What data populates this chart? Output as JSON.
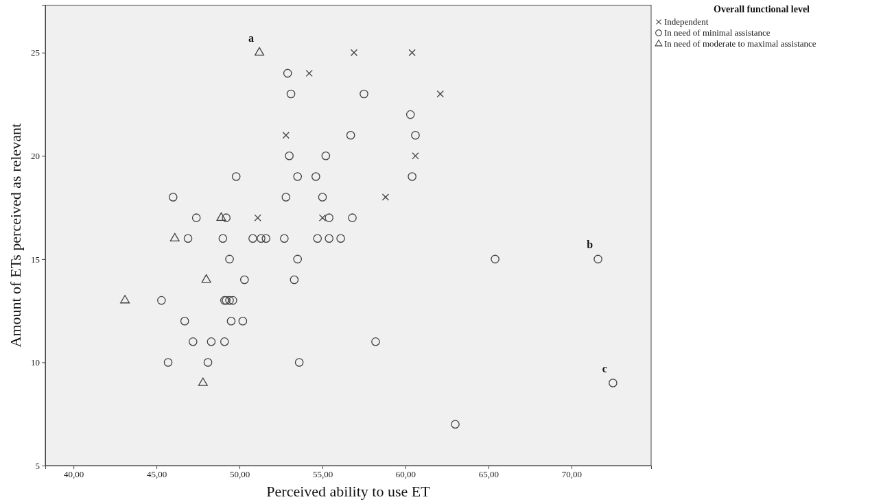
{
  "chart_data": {
    "type": "scatter",
    "xlabel": "Perceived ability to use ET",
    "ylabel": "Amount of ETs perceived as relevant",
    "legend_title": "Overall functional level",
    "legend": "top right",
    "grid": false,
    "xlim": [
      38.3,
      74.8
    ],
    "ylim": [
      5,
      27.3
    ],
    "xticks": [
      {
        "value": 40,
        "label": "40,00"
      },
      {
        "value": 45,
        "label": "45,00"
      },
      {
        "value": 50,
        "label": "50,00"
      },
      {
        "value": 55,
        "label": "55,00"
      },
      {
        "value": 60,
        "label": "60,00"
      },
      {
        "value": 65,
        "label": "65,00"
      },
      {
        "value": 70,
        "label": "70,00"
      }
    ],
    "yticks": [
      5,
      10,
      15,
      20,
      25
    ],
    "series": [
      {
        "name": "Independent",
        "color": "#404040",
        "marker": "cross",
        "x": [
          52.8,
          54.2,
          56.9,
          60.4,
          62.1,
          60.6,
          58.8,
          51.1,
          55.0
        ],
        "values": [
          21,
          24,
          25,
          25,
          23,
          20,
          18,
          17,
          17
        ]
      },
      {
        "name": "In need of minimal assistance",
        "color": "#404040",
        "marker": "circle",
        "x": [
          52.9,
          53.1,
          57.5,
          60.3,
          56.7,
          60.6,
          53.0,
          55.2,
          49.8,
          53.5,
          54.6,
          60.4,
          46.0,
          52.8,
          55.0,
          47.4,
          49.2,
          55.4,
          56.8,
          46.9,
          49.0,
          50.8,
          51.3,
          51.6,
          52.7,
          54.7,
          55.4,
          56.1,
          49.4,
          53.5,
          65.4,
          71.6,
          50.3,
          53.3,
          45.3,
          49.1,
          49.2,
          49.4,
          49.6,
          46.7,
          49.5,
          50.2,
          47.2,
          48.3,
          49.1,
          58.2,
          45.7,
          48.1,
          53.6,
          72.5,
          63.0
        ],
        "values": [
          24,
          23,
          23,
          22,
          21,
          21,
          20,
          20,
          19,
          19,
          19,
          19,
          18,
          18,
          18,
          17,
          17,
          17,
          17,
          16,
          16,
          16,
          16,
          16,
          16,
          16,
          16,
          16,
          15,
          15,
          15,
          15,
          14,
          14,
          13,
          13,
          13,
          13,
          13,
          12,
          12,
          12,
          11,
          11,
          11,
          11,
          10,
          10,
          10,
          9,
          7
        ]
      },
      {
        "name": "In need of moderate to maximal assistance",
        "color": "#404040",
        "marker": "triangle",
        "x": [
          51.2,
          48.9,
          46.1,
          48.0,
          43.1,
          47.8
        ],
        "values": [
          25,
          17,
          16,
          14,
          13,
          9
        ]
      }
    ],
    "annotations": [
      {
        "text": "a",
        "x": 51.2,
        "y": 25
      },
      {
        "text": "b",
        "x": 71.6,
        "y": 15
      },
      {
        "text": "c",
        "x": 72.5,
        "y": 9
      }
    ]
  }
}
